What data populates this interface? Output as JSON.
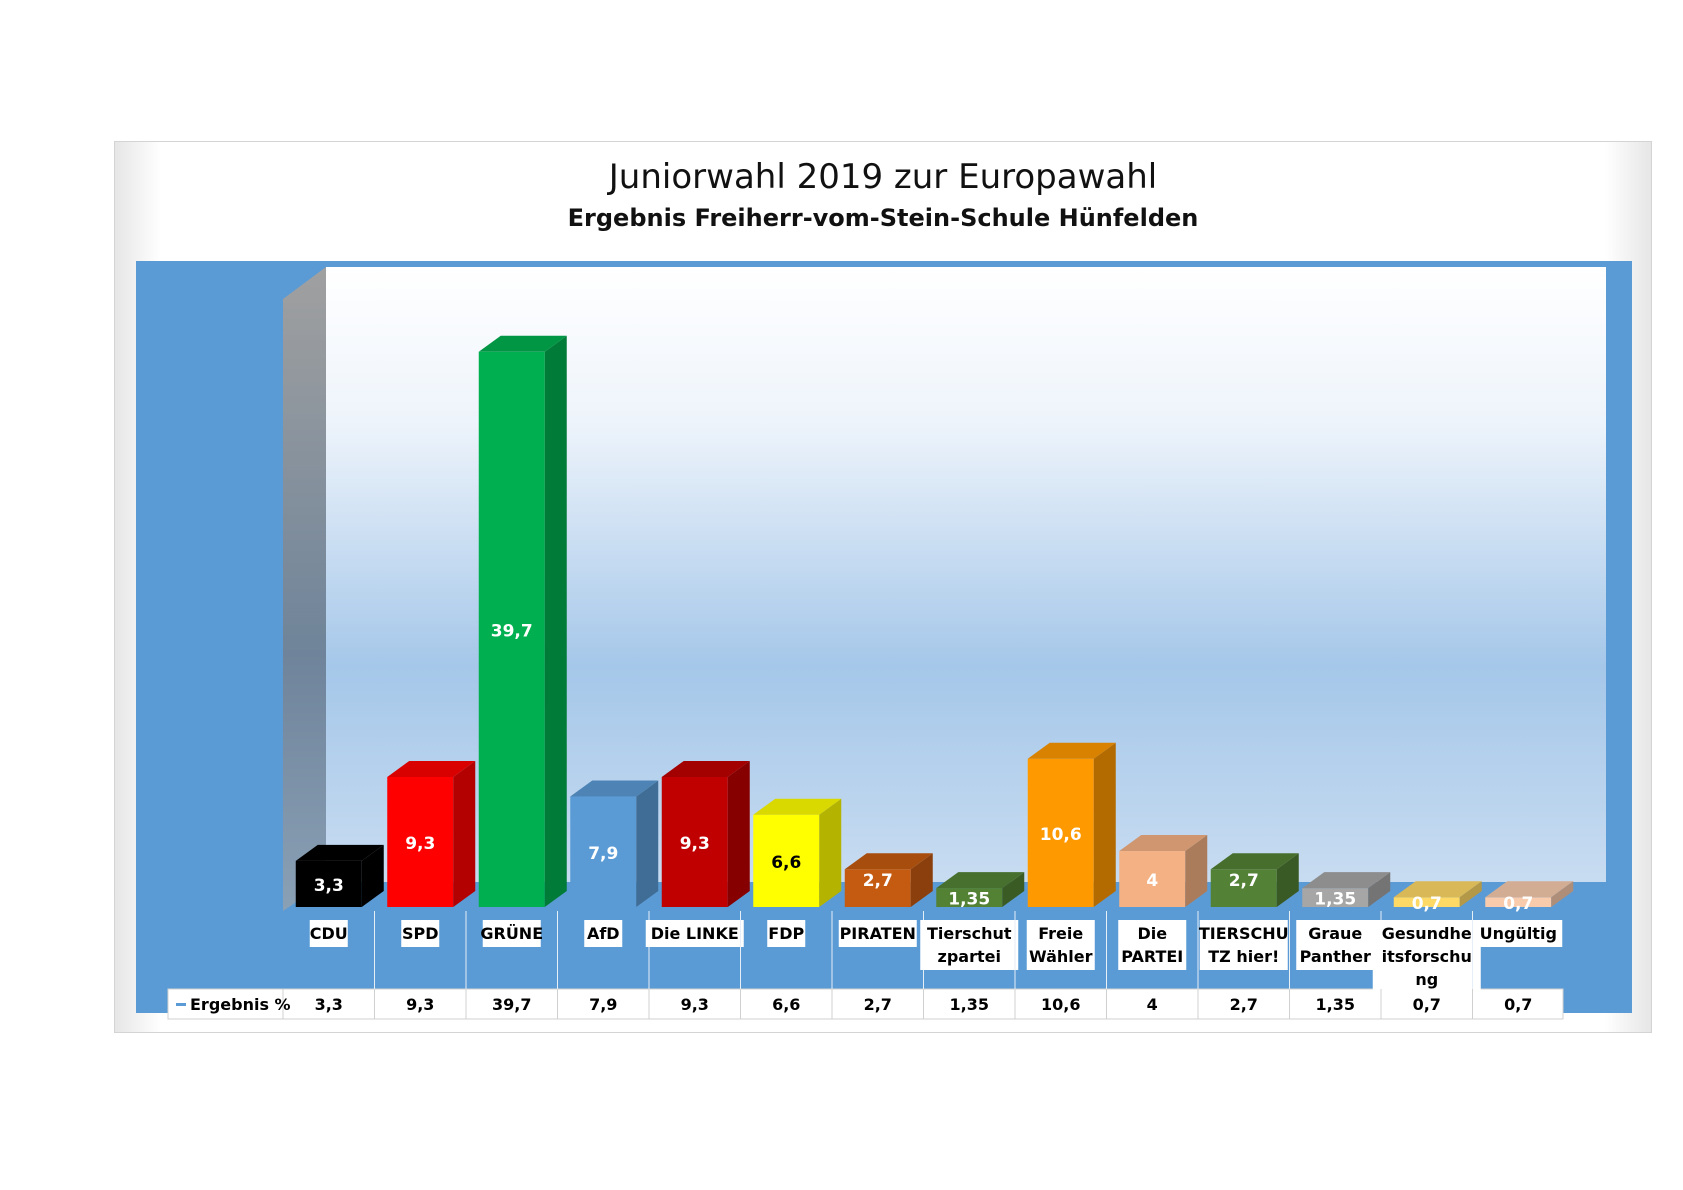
{
  "chart_data": {
    "type": "bar",
    "title": "Juniorwahl 2019 zur Europawahl",
    "subtitle": "Ergebnis Freiherr-vom-Stein-Schule Hünfelden",
    "series": [
      {
        "name": "Ergebnis %",
        "values": [
          3.3,
          9.3,
          39.7,
          7.9,
          9.3,
          6.6,
          2.7,
          1.35,
          10.6,
          4,
          2.7,
          1.35,
          0.7,
          0.7
        ],
        "data_labels": [
          "3,3",
          "9,3",
          "39,7",
          "7,9",
          "9,3",
          "6,6",
          "2,7",
          "1,35",
          "10,6",
          "4",
          "2,7",
          "1,35",
          "0,7",
          "0,7"
        ]
      }
    ],
    "categories": [
      [
        "CDU"
      ],
      [
        "SPD"
      ],
      [
        "GRÜNE"
      ],
      [
        "AfD"
      ],
      [
        "Die LINKE"
      ],
      [
        "FDP"
      ],
      [
        "PIRATEN"
      ],
      [
        "Tierschut",
        "zpartei"
      ],
      [
        "Freie",
        "Wähler"
      ],
      [
        "Die",
        "PARTEI"
      ],
      [
        "TIERSCHU",
        "TZ hier!"
      ],
      [
        "Graue",
        "Panther"
      ],
      [
        "Gesundhe",
        "itsforschu",
        "ng"
      ],
      [
        "Ungültig"
      ]
    ],
    "bar_colors": [
      "#000000",
      "#ff0000",
      "#00b050",
      "#5b9bd5",
      "#c00000",
      "#ffff00",
      "#c55a11",
      "#548235",
      "#ff9900",
      "#f4b183",
      "#538135",
      "#a6a6a6",
      "#ffd966",
      "#f8cbad"
    ],
    "label_colors": [
      "#ffffff",
      "#ffffff",
      "#ffffff",
      "#ffffff",
      "#ffffff",
      "#000000",
      "#ffffff",
      "#ffffff",
      "#ffffff",
      "#ffffff",
      "#ffffff",
      "#ffffff",
      "#ffffff",
      "#ffffff"
    ],
    "ylim": [
      0,
      45
    ],
    "data_table": true,
    "legend": "in data table",
    "gridlines": false,
    "background": "#5b9bd5"
  }
}
